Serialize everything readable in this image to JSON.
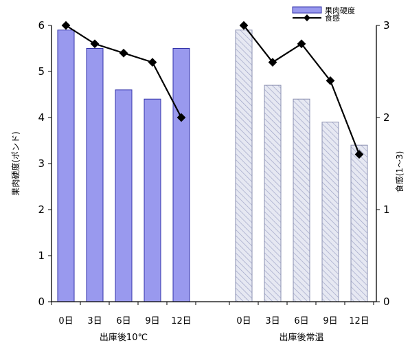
{
  "chart_data": {
    "type": "bar",
    "title": "",
    "groups": [
      {
        "label": "出庫後10℃",
        "categories": [
          "0日",
          "3日",
          "6日",
          "9日",
          "12日"
        ],
        "hardness": [
          5.9,
          5.5,
          4.6,
          4.4,
          5.5
        ],
        "texture": [
          3.0,
          2.8,
          2.7,
          2.6,
          2.0
        ],
        "bar_style": "solid"
      },
      {
        "label": "出庫後常温",
        "categories": [
          "0日",
          "3日",
          "6日",
          "9日",
          "12日"
        ],
        "hardness": [
          5.9,
          4.7,
          4.4,
          3.9,
          3.4
        ],
        "texture": [
          3.0,
          2.6,
          2.8,
          2.4,
          1.6
        ],
        "bar_style": "hatched"
      }
    ],
    "series": [
      {
        "name": "果肉硬度",
        "type": "bar",
        "axis": "left"
      },
      {
        "name": "食感",
        "type": "line",
        "axis": "right"
      }
    ],
    "y_left": {
      "label": "果肉硬度(ポンド)",
      "ylim": [
        0,
        6
      ],
      "ticks": [
        "0",
        "1",
        "2",
        "3",
        "4",
        "5",
        "6"
      ]
    },
    "y_right": {
      "label": "食感(1～3)",
      "ylim": [
        0,
        3
      ],
      "ticks": [
        "0",
        "1",
        "2",
        "3"
      ]
    },
    "legend": "top-right",
    "grid": false
  },
  "colors": {
    "bar_fill": "#9999ee",
    "bar_stroke": "#3333aa",
    "hatch_fill": "#e6e8f2",
    "hatch_line": "#9aa0c4",
    "hatch_stroke": "#8a8fb0",
    "line": "#000000",
    "axis": "#000000"
  }
}
